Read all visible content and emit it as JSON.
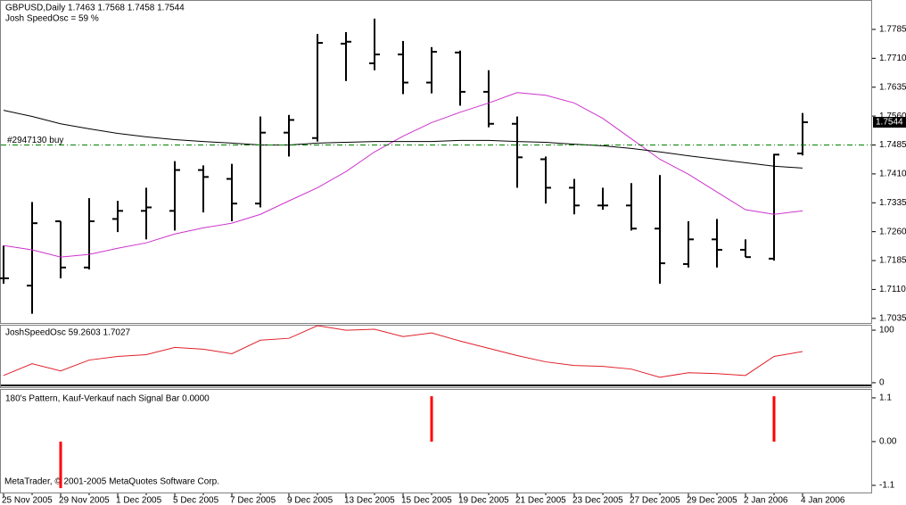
{
  "chart_data": [
    {
      "type": "ohlc",
      "title": "GBPUSD,Daily  1.7463 1.7568 1.7458 1.7544",
      "subtitle": "Josh SpeedOsc = 59 %",
      "categories": [
        "25 Nov 2005",
        null,
        "29 Nov 2005",
        null,
        "1 Dec 2005",
        null,
        "5 Dec 2005",
        null,
        "7 Dec 2005",
        null,
        "9 Dec 2005",
        null,
        "13 Dec 2005",
        null,
        "15 Dec 2005",
        null,
        "19 Dec 2005",
        null,
        "21 Dec 2005",
        null,
        "23 Dec 2005",
        null,
        "27 Dec 2005",
        null,
        "29 Dec 2005",
        null,
        "2 Jan 2006",
        null,
        "4 Jan 2006"
      ],
      "open": [
        1.7139,
        1.712,
        1.7287,
        1.7167,
        1.7293,
        1.7314,
        1.7314,
        1.742,
        1.7397,
        1.7333,
        1.7517,
        1.7503,
        1.7748,
        1.7697,
        1.772,
        1.7647,
        1.7725,
        1.7623,
        1.754,
        1.7448,
        1.7374,
        1.7328,
        1.7328,
        1.7268,
        1.7176,
        1.724,
        1.7213,
        1.719,
        1.7463
      ],
      "high": [
        1.7224,
        1.7337,
        1.7287,
        1.7347,
        1.734,
        1.7374,
        1.7443,
        1.7432,
        1.7436,
        1.7559,
        1.7563,
        1.7773,
        1.7778,
        1.7813,
        1.7755,
        1.7739,
        1.773,
        1.7679,
        1.7559,
        1.7455,
        1.7397,
        1.7374,
        1.7386,
        1.7407,
        1.7287,
        1.7293,
        1.724,
        1.7462,
        1.7568
      ],
      "low": [
        1.7125,
        1.7047,
        1.7139,
        1.7162,
        1.7259,
        1.724,
        1.7263,
        1.731,
        1.7287,
        1.7323,
        1.7455,
        1.7494,
        1.7651,
        1.7679,
        1.7617,
        1.7619,
        1.7587,
        1.7531,
        1.7374,
        1.7333,
        1.7305,
        1.7317,
        1.7263,
        1.7125,
        1.7167,
        1.7167,
        1.7194,
        1.7185,
        1.7458
      ],
      "close": [
        1.7139,
        1.7282,
        1.7167,
        1.7287,
        1.7314,
        1.7323,
        1.742,
        1.7402,
        1.7333,
        1.7517,
        1.755,
        1.775,
        1.7753,
        1.772,
        1.7647,
        1.7727,
        1.7623,
        1.754,
        1.7453,
        1.7374,
        1.7328,
        1.7328,
        1.7268,
        1.7178,
        1.724,
        1.7213,
        1.7194,
        1.746,
        1.7544
      ],
      "bar_color": "#000000",
      "series": [
        {
          "color": "#cc33cc",
          "values": [
            1.7224,
            1.7213,
            1.7194,
            1.7201,
            1.7217,
            1.7231,
            1.7254,
            1.727,
            1.7282,
            1.7305,
            1.734,
            1.7374,
            1.7416,
            1.7467,
            1.7508,
            1.7543,
            1.757,
            1.7594,
            1.7621,
            1.7614,
            1.7594,
            1.7554,
            1.7501,
            1.7448,
            1.7409,
            1.7363,
            1.7317,
            1.7305,
            1.7314
          ]
        },
        {
          "color": "#000000",
          "values": [
            1.7575,
            1.7559,
            1.754,
            1.7527,
            1.7515,
            1.7506,
            1.7499,
            1.7494,
            1.749,
            1.7485,
            1.7485,
            1.749,
            1.7492,
            1.7494,
            1.7494,
            1.7494,
            1.7497,
            1.7497,
            1.7494,
            1.7492,
            1.7487,
            1.7483,
            1.7476,
            1.7467,
            1.7457,
            1.7448,
            1.7439,
            1.743,
            1.7425
          ]
        }
      ],
      "annotation": {
        "label": "#2947130 buy",
        "value": 1.7485,
        "color": "#008000"
      },
      "ylim": [
        1.7023,
        1.7859
      ],
      "yticks": [
        1.7785,
        {
          "value": 1.771,
          "label": "1.7710"
        },
        1.7635,
        {
          "value": 1.756,
          "label": "1.7560"
        },
        1.7485,
        {
          "value": 1.741,
          "label": "1.7410"
        },
        1.7335,
        {
          "value": 1.726,
          "label": "1.7260"
        },
        1.7185,
        {
          "value": 1.711,
          "label": "1.7110"
        },
        1.7035
      ]
    },
    {
      "type": "line",
      "title": "JoshSpeedOsc 59.2603 1.7027",
      "series": [
        {
          "color": "#e0202a",
          "values": [
            13.8,
            36.2,
            22.4,
            43.1,
            50.0,
            53.4,
            67.2,
            63.8,
            55.2,
            81.0,
            84.5,
            108.6,
            100,
            101.7,
            87.9,
            94.8,
            79.3,
            65.5,
            51.7,
            39.7,
            32.8,
            31.0,
            25.9,
            10.3,
            19.0,
            17.2,
            13.8,
            50.0,
            59.2603
          ]
        }
      ],
      "ylim": [
        -8.6,
        108.6
      ],
      "yticks": [
        0,
        100
      ]
    },
    {
      "type": "bar",
      "title": "180's Pattern, Kauf-Verkauf nach Signal Bar 0.0000",
      "credit": "MetaTrader, © 2001-2005 MetaQuotes Software Corp.",
      "color": "#ff0000",
      "values": [
        0,
        0,
        -1.17,
        0,
        0,
        0,
        0,
        0,
        0,
        0,
        0,
        0,
        0,
        0,
        0,
        1.14,
        0,
        0,
        0,
        0,
        0,
        0,
        0,
        0,
        0,
        0,
        0,
        1.14,
        0
      ],
      "ylim": [
        -1.28,
        1.3
      ],
      "yticks": [
        1.1,
        {
          "value": 0,
          "label": "0.00"
        },
        -1.1
      ]
    }
  ]
}
